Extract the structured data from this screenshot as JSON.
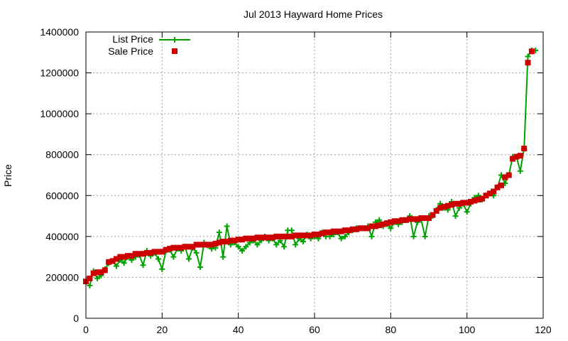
{
  "chart_data": {
    "type": "line",
    "title": "Jul 2013 Hayward Home Prices",
    "xlabel": "",
    "ylabel": "Price",
    "xlim": [
      0,
      120
    ],
    "ylim": [
      0,
      1400000
    ],
    "x_ticks": [
      0,
      20,
      40,
      60,
      80,
      100,
      120
    ],
    "y_ticks": [
      0,
      200000,
      400000,
      600000,
      800000,
      1000000,
      1200000,
      1400000
    ],
    "grid": true,
    "legend_position": "top-left",
    "series": [
      {
        "name": "List Price",
        "style": "line-with-plus-markers",
        "color": "#00a000",
        "x": [
          1,
          2,
          3,
          4,
          5,
          6,
          7,
          8,
          9,
          10,
          11,
          12,
          13,
          14,
          15,
          16,
          17,
          18,
          19,
          20,
          21,
          22,
          23,
          24,
          25,
          26,
          27,
          28,
          29,
          30,
          31,
          32,
          33,
          34,
          35,
          36,
          37,
          38,
          39,
          40,
          41,
          42,
          43,
          44,
          45,
          46,
          47,
          48,
          49,
          50,
          51,
          52,
          53,
          54,
          55,
          56,
          57,
          58,
          59,
          60,
          61,
          62,
          63,
          64,
          65,
          66,
          67,
          68,
          69,
          70,
          71,
          72,
          73,
          74,
          75,
          76,
          77,
          78,
          79,
          80,
          81,
          82,
          83,
          84,
          85,
          86,
          87,
          88,
          89,
          90,
          91,
          92,
          93,
          94,
          95,
          96,
          97,
          98,
          99,
          100,
          101,
          102,
          103,
          104,
          105,
          106,
          107,
          108,
          109,
          110,
          111,
          112,
          113,
          114,
          115,
          116,
          117,
          118
        ],
        "values": [
          160000,
          230000,
          195000,
          210000,
          240000,
          270000,
          280000,
          255000,
          285000,
          270000,
          300000,
          285000,
          300000,
          310000,
          260000,
          330000,
          305000,
          320000,
          290000,
          240000,
          330000,
          335000,
          300000,
          340000,
          330000,
          350000,
          290000,
          345000,
          320000,
          250000,
          370000,
          355000,
          340000,
          345000,
          420000,
          300000,
          450000,
          360000,
          370000,
          350000,
          330000,
          350000,
          370000,
          380000,
          360000,
          380000,
          400000,
          380000,
          390000,
          360000,
          380000,
          350000,
          430000,
          430000,
          360000,
          390000,
          375000,
          410000,
          390000,
          400000,
          390000,
          420000,
          400000,
          400000,
          410000,
          420000,
          390000,
          400000,
          420000,
          430000,
          440000,
          440000,
          440000,
          450000,
          400000,
          470000,
          480000,
          450000,
          460000,
          440000,
          470000,
          460000,
          470000,
          480000,
          500000,
          400000,
          470000,
          480000,
          400000,
          500000,
          500000,
          530000,
          560000,
          540000,
          530000,
          570000,
          500000,
          540000,
          560000,
          520000,
          560000,
          590000,
          600000,
          580000,
          600000,
          610000,
          600000,
          640000,
          700000,
          660000,
          700000,
          790000,
          790000,
          720000,
          830000,
          1280000,
          1310000,
          1310000
        ]
      },
      {
        "name": "Sale Price",
        "style": "square-markers",
        "color": "#cc0000",
        "x": [
          0,
          1,
          2,
          3,
          4,
          5,
          6,
          7,
          8,
          9,
          10,
          11,
          12,
          13,
          14,
          15,
          16,
          17,
          18,
          19,
          20,
          21,
          22,
          23,
          24,
          25,
          26,
          27,
          28,
          29,
          30,
          31,
          32,
          33,
          34,
          35,
          36,
          37,
          38,
          39,
          40,
          41,
          42,
          43,
          44,
          45,
          46,
          47,
          48,
          49,
          50,
          51,
          52,
          53,
          54,
          55,
          56,
          57,
          58,
          59,
          60,
          61,
          62,
          63,
          64,
          65,
          66,
          67,
          68,
          69,
          70,
          71,
          72,
          73,
          74,
          75,
          76,
          77,
          78,
          79,
          80,
          81,
          82,
          83,
          84,
          85,
          86,
          87,
          88,
          89,
          90,
          91,
          92,
          93,
          94,
          95,
          96,
          97,
          98,
          99,
          100,
          101,
          102,
          103,
          104,
          105,
          106,
          107,
          108,
          109,
          110,
          111,
          112,
          113,
          114,
          115,
          116,
          117
        ],
        "values": [
          180000,
          195000,
          220000,
          225000,
          225000,
          235000,
          275000,
          280000,
          290000,
          300000,
          300000,
          305000,
          305000,
          315000,
          315000,
          315000,
          320000,
          320000,
          325000,
          325000,
          325000,
          335000,
          340000,
          345000,
          345000,
          345000,
          350000,
          350000,
          350000,
          360000,
          360000,
          360000,
          360000,
          360000,
          365000,
          370000,
          375000,
          375000,
          380000,
          380000,
          385000,
          385000,
          390000,
          390000,
          390000,
          395000,
          395000,
          395000,
          395000,
          395000,
          400000,
          400000,
          400000,
          400000,
          400000,
          405000,
          405000,
          405000,
          405000,
          405000,
          410000,
          410000,
          415000,
          420000,
          420000,
          425000,
          425000,
          425000,
          430000,
          430000,
          435000,
          435000,
          440000,
          440000,
          440000,
          450000,
          450000,
          455000,
          460000,
          465000,
          470000,
          475000,
          475000,
          480000,
          480000,
          485000,
          485000,
          485000,
          490000,
          490000,
          490000,
          505000,
          525000,
          540000,
          545000,
          550000,
          555000,
          560000,
          560000,
          565000,
          565000,
          570000,
          575000,
          580000,
          585000,
          600000,
          610000,
          620000,
          640000,
          650000,
          690000,
          700000,
          780000,
          790000,
          795000,
          830000,
          1250000,
          1305000
        ]
      }
    ]
  }
}
